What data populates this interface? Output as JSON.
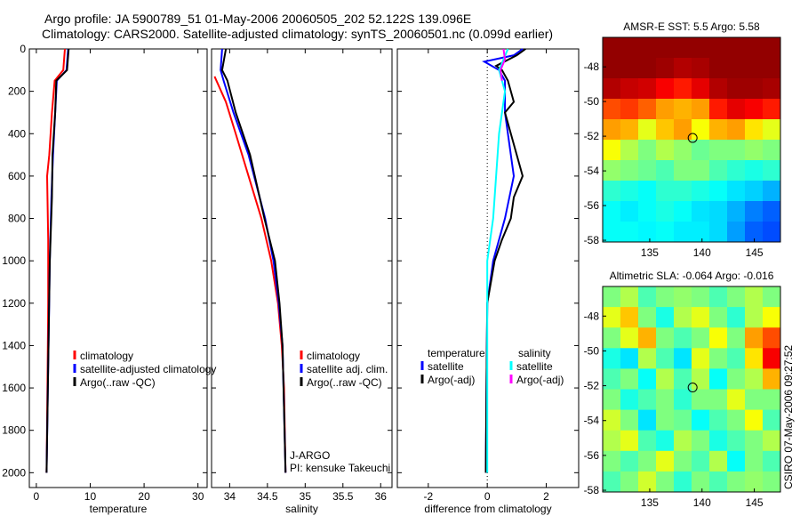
{
  "header": {
    "line1": "Argo profile: JA 5900789_51 01-May-2006 20060505_202 52.122S 139.096E",
    "line2": "Climatology: CARS2000. Satellite-adjusted climatology: synTS_20060501.nc (0.099d earlier)"
  },
  "side_stamp": "CSIRO 07-May-2006 09:27:52",
  "colors": {
    "climatology": "#ff0000",
    "satellite": "#0000ff",
    "argo": "#000000",
    "sal_satellite": "#00ffff",
    "sal_argo": "#ff00ff"
  },
  "chart_data": [
    {
      "type": "line",
      "xlabel": "temperature",
      "ylim": [
        0,
        2070
      ],
      "xlim": [
        -1.3,
        31.7
      ],
      "xticks": [
        0,
        10,
        20,
        30
      ],
      "yticks": [
        0,
        200,
        400,
        600,
        800,
        1000,
        1200,
        1400,
        1600,
        1800,
        2000
      ],
      "legend": [
        "climatology",
        "satellite-adjusted climatology",
        "Argo(..raw -QC)"
      ],
      "series": [
        {
          "name": "climatology",
          "color": "#ff0000",
          "depth": [
            0,
            100,
            150,
            300,
            500,
            600,
            900,
            1200,
            1500,
            2000
          ],
          "values": [
            5.3,
            5.0,
            3.4,
            2.9,
            2.4,
            2.0,
            2.2,
            2.2,
            2.1,
            1.9
          ]
        },
        {
          "name": "satellite-adjusted climatology",
          "color": "#0000ff",
          "depth": [
            0,
            100,
            150,
            300,
            500,
            700,
            1000,
            1500,
            2000
          ],
          "values": [
            5.9,
            5.6,
            3.8,
            3.5,
            3.1,
            2.8,
            2.5,
            2.2,
            1.9
          ]
        },
        {
          "name": "Argo(..raw -QC)",
          "color": "#000000",
          "depth": [
            0,
            100,
            150,
            300,
            500,
            700,
            1000,
            1500,
            2000
          ],
          "values": [
            6.0,
            5.7,
            3.7,
            3.5,
            3.0,
            2.9,
            2.5,
            2.2,
            1.9
          ]
        }
      ]
    },
    {
      "type": "line",
      "xlabel": "salinity",
      "ylim": [
        0,
        2070
      ],
      "xlim": [
        33.76,
        36.15
      ],
      "xticks": [
        34,
        34.5,
        35,
        35.5,
        36
      ],
      "legend": [
        "climatology",
        "satellite adj. clim.",
        "Argo(..raw -QC)"
      ],
      "annotation": [
        "J-ARGO",
        "PI: kensuke Takeuchi"
      ],
      "series": [
        {
          "name": "climatology",
          "color": "#ff0000",
          "depth": [
            130,
            250,
            400,
            600,
            800,
            1000,
            1200,
            1400,
            1600,
            2000
          ],
          "values": [
            33.8,
            33.95,
            34.08,
            34.25,
            34.42,
            34.55,
            34.64,
            34.69,
            34.72,
            34.74
          ]
        },
        {
          "name": "satellite adj. clim.",
          "color": "#0000ff",
          "depth": [
            0,
            100,
            150,
            300,
            500,
            800,
            1000,
            1200,
            1400,
            2000
          ],
          "values": [
            33.9,
            33.88,
            33.92,
            34.05,
            34.25,
            34.47,
            34.58,
            34.65,
            34.7,
            34.74
          ]
        },
        {
          "name": "Argo(..raw -QC)",
          "color": "#000000",
          "depth": [
            0,
            100,
            150,
            300,
            500,
            800,
            1000,
            1200,
            1400,
            2000
          ],
          "values": [
            33.95,
            33.9,
            33.97,
            34.08,
            34.27,
            34.46,
            34.6,
            34.66,
            34.7,
            34.74
          ]
        }
      ]
    },
    {
      "type": "line",
      "xlabel": "difference from climatology",
      "ylim": [
        0,
        2070
      ],
      "xlim": [
        -3.05,
        3.1
      ],
      "xticks": [
        -2,
        0,
        2
      ],
      "legend_headers": [
        "temperature",
        "salinity"
      ],
      "legend": [
        "satellite",
        "Argo(-adj)",
        "satellite",
        "Argo(-adj)"
      ],
      "series": [
        {
          "name": "temperature satellite",
          "color": "#0000ff",
          "depth": [
            0,
            30,
            60,
            100,
            150,
            300,
            500,
            600,
            800,
            1000,
            1200,
            1500,
            2000
          ],
          "values": [
            1.2,
            0.9,
            -0.1,
            0.4,
            0.6,
            0.6,
            0.8,
            0.9,
            0.6,
            0.2,
            0.0,
            -0.02,
            -0.05
          ]
        },
        {
          "name": "temperature Argo(-adj)",
          "color": "#000000",
          "depth": [
            0,
            30,
            80,
            100,
            150,
            250,
            300,
            400,
            500,
            600,
            700,
            800,
            900,
            1000,
            1200,
            1500,
            2000
          ],
          "values": [
            1.3,
            1.0,
            0.3,
            0.5,
            0.7,
            0.9,
            0.6,
            0.8,
            1.0,
            1.2,
            0.9,
            0.8,
            0.5,
            0.25,
            0.0,
            -0.02,
            -0.05
          ]
        },
        {
          "name": "salinity satellite",
          "color": "#00ffff",
          "depth": [
            0,
            100,
            200,
            400,
            600,
            800,
            1000,
            1500,
            2000
          ],
          "values": [
            0.7,
            0.4,
            0.6,
            0.4,
            0.3,
            0.2,
            0.0,
            0.0,
            0.0
          ]
        },
        {
          "name": "salinity Argo(-adj)",
          "color": "#ff00ff",
          "depth": [
            0,
            50,
            100,
            150
          ],
          "values": [
            0.55,
            0.6,
            0.45,
            0.5
          ]
        }
      ]
    },
    {
      "type": "heatmap",
      "title": "AMSR-E SST: 5.5 Argo: 5.58",
      "xlim": [
        130.5,
        147.5
      ],
      "ylim": [
        -58.1,
        -46.3
      ],
      "xticks": [
        135,
        140,
        145
      ],
      "yticks": [
        -48,
        -50,
        -52,
        -54,
        -56,
        -58
      ],
      "marker": [
        139.1,
        -52.1
      ],
      "grid": [
        [
          0.98,
          0.98,
          0.98,
          0.98,
          0.98,
          0.98,
          0.98,
          0.98,
          0.98,
          0.98
        ],
        [
          0.98,
          0.98,
          0.98,
          0.97,
          0.95,
          0.96,
          0.98,
          0.98,
          0.98,
          0.98
        ],
        [
          0.95,
          0.93,
          0.92,
          0.88,
          0.85,
          0.9,
          0.95,
          0.97,
          0.97,
          0.96
        ],
        [
          0.8,
          0.82,
          0.78,
          0.72,
          0.7,
          0.72,
          0.85,
          0.9,
          0.88,
          0.85
        ],
        [
          0.72,
          0.7,
          0.6,
          0.68,
          0.72,
          0.62,
          0.7,
          0.72,
          0.65,
          0.6
        ],
        [
          0.62,
          0.55,
          0.5,
          0.55,
          0.52,
          0.48,
          0.5,
          0.5,
          0.52,
          0.5
        ],
        [
          0.52,
          0.5,
          0.48,
          0.45,
          0.5,
          0.5,
          0.45,
          0.42,
          0.4,
          0.42
        ],
        [
          0.42,
          0.4,
          0.38,
          0.42,
          0.42,
          0.4,
          0.38,
          0.35,
          0.33,
          0.3
        ],
        [
          0.38,
          0.36,
          0.38,
          0.4,
          0.38,
          0.35,
          0.34,
          0.3,
          0.25,
          0.22
        ],
        [
          0.38,
          0.38,
          0.37,
          0.38,
          0.36,
          0.36,
          0.34,
          0.28,
          0.22,
          0.2
        ]
      ]
    },
    {
      "type": "heatmap",
      "title": "Altimetric SLA: -0.064 Argo: -0.016",
      "xlim": [
        130.5,
        147.5
      ],
      "ylim": [
        -58.1,
        -46.3
      ],
      "xticks": [
        135,
        140,
        145
      ],
      "yticks": [
        -48,
        -50,
        -52,
        -54,
        -56,
        -58
      ],
      "marker": [
        139.1,
        -52.1
      ],
      "grid": [
        [
          0.5,
          0.55,
          0.45,
          0.5,
          0.52,
          0.5,
          0.45,
          0.5,
          0.55,
          0.5
        ],
        [
          0.6,
          0.68,
          0.5,
          0.4,
          0.55,
          0.6,
          0.5,
          0.42,
          0.55,
          0.62
        ],
        [
          0.5,
          0.6,
          0.7,
          0.5,
          0.45,
          0.5,
          0.62,
          0.5,
          0.72,
          0.8
        ],
        [
          0.4,
          0.35,
          0.55,
          0.45,
          0.35,
          0.6,
          0.5,
          0.45,
          0.65,
          0.88
        ],
        [
          0.45,
          0.5,
          0.38,
          0.55,
          0.45,
          0.55,
          0.38,
          0.5,
          0.55,
          0.7
        ],
        [
          0.5,
          0.4,
          0.45,
          0.5,
          0.42,
          0.5,
          0.5,
          0.6,
          0.5,
          0.5
        ],
        [
          0.58,
          0.5,
          0.35,
          0.5,
          0.48,
          0.38,
          0.45,
          0.5,
          0.62,
          0.45
        ],
        [
          0.55,
          0.6,
          0.45,
          0.4,
          0.55,
          0.5,
          0.4,
          0.45,
          0.5,
          0.55
        ],
        [
          0.5,
          0.45,
          0.5,
          0.6,
          0.5,
          0.45,
          0.55,
          0.38,
          0.5,
          0.45
        ],
        [
          0.45,
          0.5,
          0.58,
          0.5,
          0.42,
          0.5,
          0.45,
          0.5,
          0.52,
          0.5
        ]
      ]
    }
  ]
}
